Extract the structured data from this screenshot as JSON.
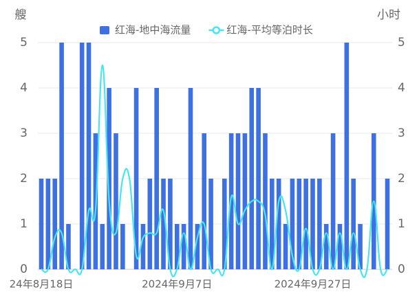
{
  "chart_data": {
    "type": "bar",
    "y_axis_label": "艘",
    "y2_axis_label": "小时",
    "categories": [
      "24年8月18日",
      null,
      null,
      null,
      null,
      null,
      null,
      null,
      null,
      null,
      null,
      null,
      null,
      null,
      null,
      null,
      null,
      null,
      null,
      null,
      "2024年9月7日",
      null,
      null,
      null,
      null,
      null,
      null,
      null,
      null,
      null,
      null,
      null,
      null,
      null,
      null,
      null,
      null,
      null,
      null,
      null,
      "2024年9月27日",
      null,
      null,
      null,
      null,
      null,
      null,
      null,
      null,
      null,
      null,
      null
    ],
    "series": [
      {
        "name": "红海-地中海流量",
        "type": "bar",
        "color": "#3d70e0",
        "values": [
          2,
          2,
          2,
          5,
          1,
          0,
          5,
          5,
          3,
          1,
          4,
          3,
          1,
          0,
          4,
          1,
          2,
          4,
          2,
          2,
          1,
          1,
          4,
          1,
          3,
          2,
          0,
          2,
          3,
          3,
          3,
          4,
          4,
          3,
          2,
          2,
          1,
          2,
          2,
          2,
          2,
          2,
          1,
          3,
          1,
          5,
          2,
          1,
          0,
          3,
          0,
          2
        ]
      },
      {
        "name": "红海-平均等泊时长",
        "type": "line",
        "axis": "y2",
        "color": "#45e6f0",
        "values": [
          0,
          0,
          0.7,
          0.8,
          0,
          0,
          0,
          1.3,
          1.3,
          4.5,
          1.5,
          0.8,
          2.0,
          2.0,
          0.3,
          0.7,
          0.8,
          0.8,
          1.3,
          0,
          0,
          0.8,
          0,
          0.7,
          1.0,
          0,
          0,
          0,
          1.6,
          1.0,
          1.3,
          1.5,
          1.5,
          1.2,
          0,
          1.5,
          1.3,
          0.3,
          0,
          0.9,
          0,
          0,
          0.8,
          0,
          0.8,
          0,
          0.8,
          0,
          0,
          1.5,
          0,
          0
        ]
      }
    ],
    "ylim": [
      0,
      5
    ],
    "yticks": [
      0,
      1,
      2,
      3,
      4,
      5
    ],
    "y2lim": [
      0,
      5
    ],
    "y2ticks": [
      0,
      1,
      2,
      3,
      4,
      5
    ],
    "grid": true
  }
}
